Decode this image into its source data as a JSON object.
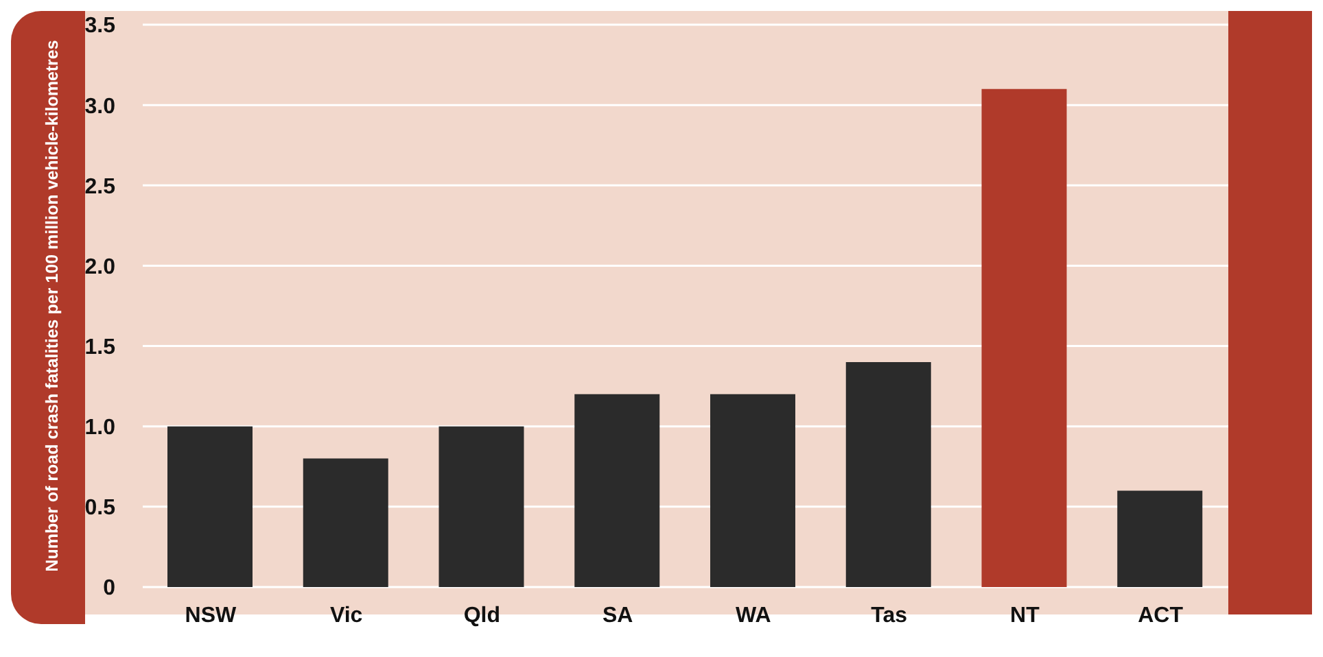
{
  "chart_data": {
    "type": "bar",
    "ylabel": "Number of road crash fatalities per 100 million vehicle-kilometres",
    "categories": [
      "NSW",
      "Vic",
      "Qld",
      "SA",
      "WA",
      "Tas",
      "NT",
      "ACT"
    ],
    "values": [
      1.0,
      0.8,
      1.0,
      1.2,
      1.2,
      1.4,
      3.1,
      0.6
    ],
    "colors": [
      "#2b2b2b",
      "#2b2b2b",
      "#2b2b2b",
      "#2b2b2b",
      "#2b2b2b",
      "#2b2b2b",
      "#b03a2a",
      "#2b2b2b"
    ],
    "ylim": [
      0,
      3.5
    ],
    "yticks": [
      0,
      {
        "value": 0.5,
        "label": "0.5"
      },
      {
        "value": 1,
        "label": "1.0"
      },
      {
        "value": 1.5,
        "label": "1.5"
      },
      {
        "value": 2,
        "label": "2.0"
      },
      {
        "value": 2.5,
        "label": "2.5"
      },
      {
        "value": 3,
        "label": "3.0"
      },
      {
        "value": 3.5,
        "label": "3.5"
      }
    ],
    "grid": "y",
    "legend": false
  }
}
